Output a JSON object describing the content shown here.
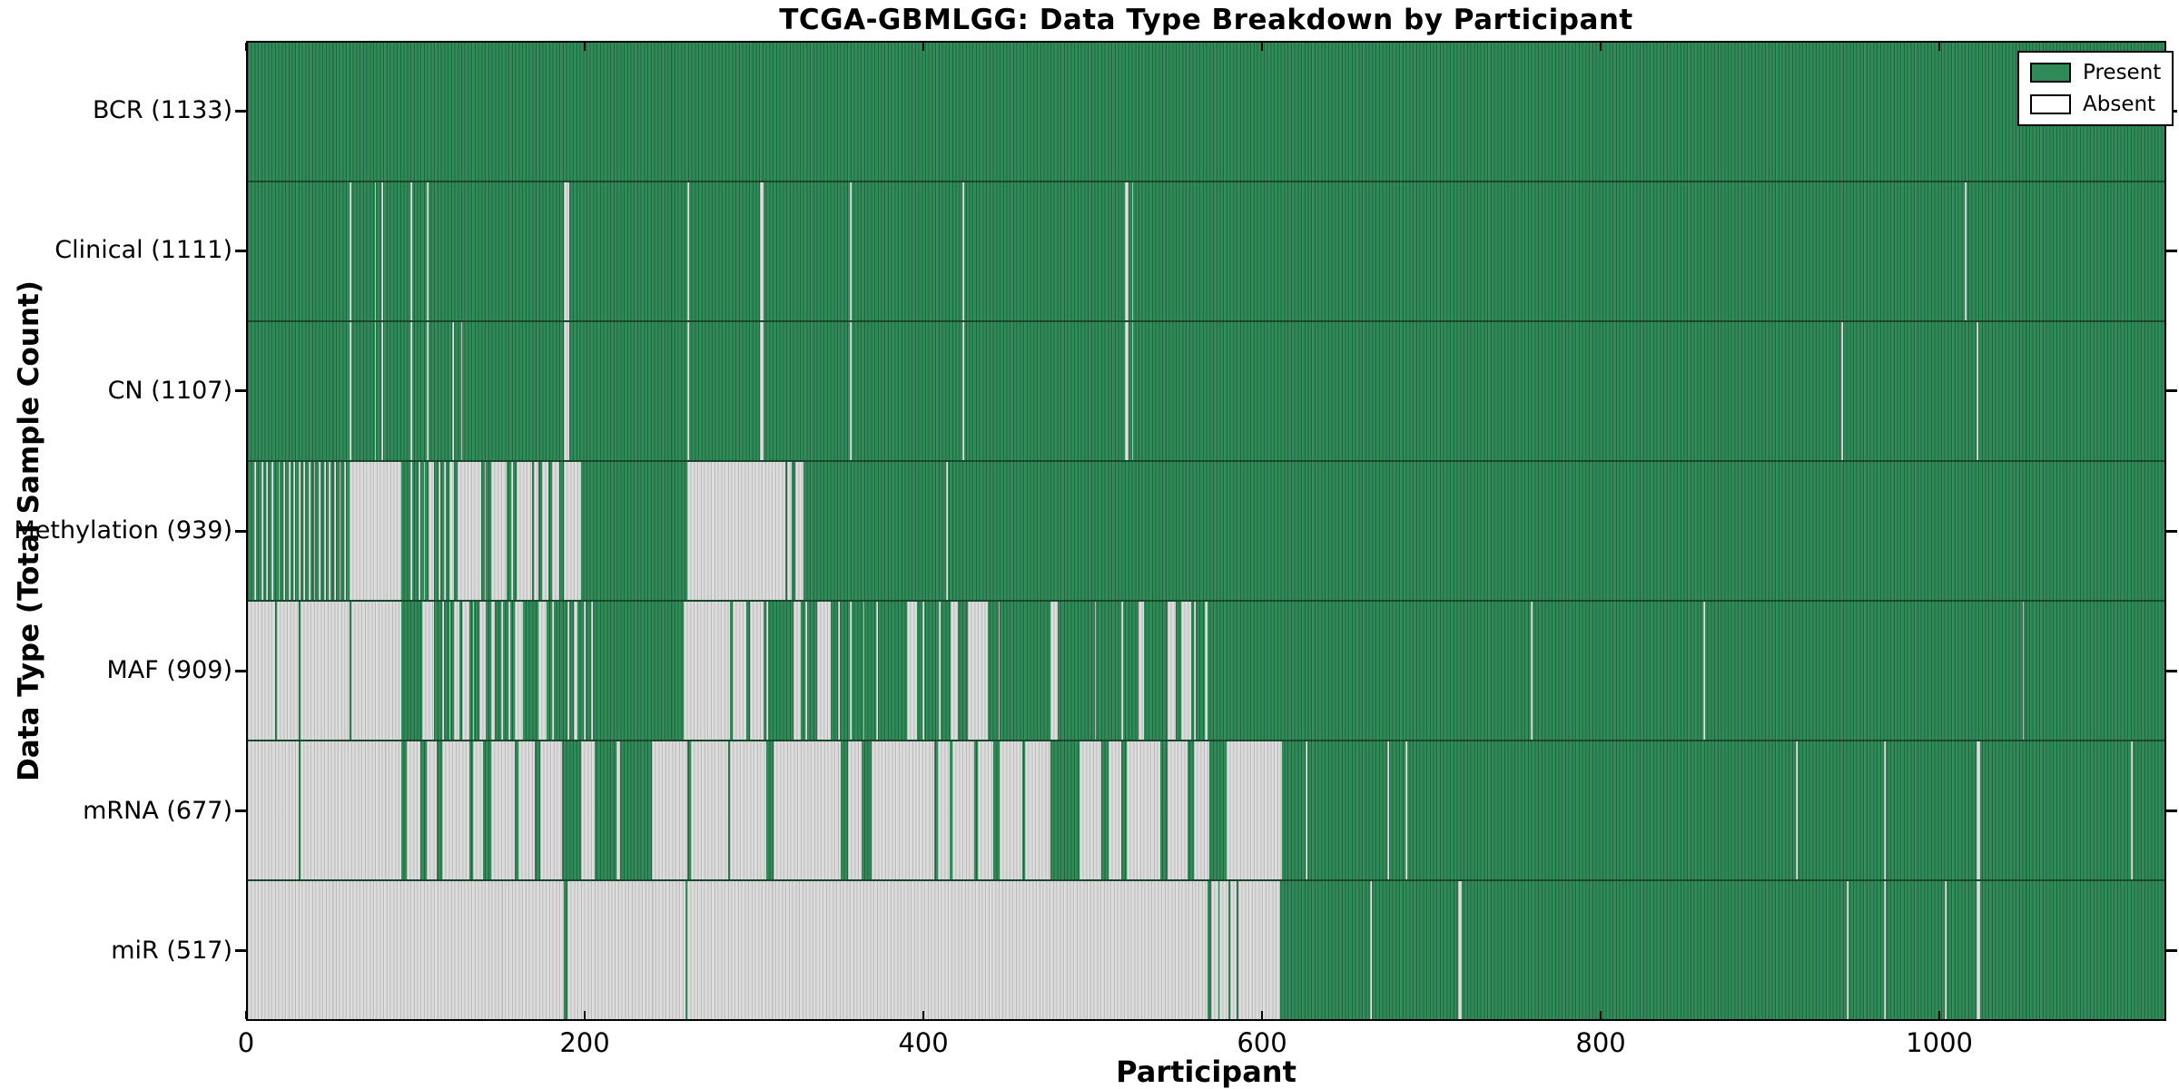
{
  "chart_data": {
    "type": "heatmap",
    "title": "TCGA-GBMLGG: Data Type Breakdown by Participant",
    "xlabel": "Participant",
    "ylabel": "Data Type (Total Sample Count)",
    "xlim": [
      0,
      1134
    ],
    "x_ticks": [
      0,
      200,
      400,
      600,
      800,
      1000
    ],
    "grid": false,
    "legend": {
      "position": "upper-right",
      "entries": [
        {
          "label": "Present",
          "color": "#2E8B57"
        },
        {
          "label": "Absent",
          "color": "#FFFFFF"
        }
      ]
    },
    "colors": {
      "present": "#2E8B57",
      "absent_cell": "#D9D9D9",
      "row_separator": "#1A2B20",
      "spine": "#000000"
    },
    "n_participants": 1133,
    "rows": [
      {
        "data_type": "BCR",
        "label": "BCR (1133)",
        "present_count": 1133,
        "absent_segments": []
      },
      {
        "data_type": "Clinical",
        "label": "Clinical (1111)",
        "present_count": 1111,
        "absent_segments": [
          [
            60,
            61
          ],
          [
            75,
            76
          ],
          [
            79,
            80
          ],
          [
            96,
            97
          ],
          [
            106,
            107
          ],
          [
            187,
            190
          ],
          [
            260,
            261
          ],
          [
            303,
            305
          ],
          [
            356,
            357
          ],
          [
            423,
            424
          ],
          [
            519,
            521
          ],
          [
            523,
            524
          ],
          [
            1016,
            1017
          ]
        ]
      },
      {
        "data_type": "CN",
        "label": "CN (1107)",
        "present_count": 1107,
        "absent_segments": [
          [
            60,
            61
          ],
          [
            75,
            76
          ],
          [
            79,
            80
          ],
          [
            96,
            97
          ],
          [
            106,
            107
          ],
          [
            121,
            122
          ],
          [
            126,
            127
          ],
          [
            187,
            190
          ],
          [
            260,
            261
          ],
          [
            303,
            305
          ],
          [
            356,
            357
          ],
          [
            423,
            424
          ],
          [
            519,
            521
          ],
          [
            523,
            524
          ],
          [
            943,
            944
          ],
          [
            1023,
            1024
          ]
        ]
      },
      {
        "data_type": "Methylation",
        "label": "Methylation (939)",
        "present_count": 939,
        "absent_segments": [
          [
            4,
            5
          ],
          [
            8,
            9
          ],
          [
            11,
            12
          ],
          [
            14,
            15
          ],
          [
            18,
            19
          ],
          [
            21,
            22
          ],
          [
            24,
            25
          ],
          [
            27,
            28
          ],
          [
            30,
            31
          ],
          [
            33,
            34
          ],
          [
            36,
            37
          ],
          [
            39,
            40
          ],
          [
            42,
            43
          ],
          [
            45,
            46
          ],
          [
            48,
            49
          ],
          [
            51,
            52
          ],
          [
            54,
            55
          ],
          [
            57,
            58
          ],
          [
            60,
            91
          ],
          [
            96,
            97
          ],
          [
            101,
            102
          ],
          [
            104,
            105
          ],
          [
            107,
            110
          ],
          [
            113,
            114
          ],
          [
            116,
            117
          ],
          [
            119,
            122
          ],
          [
            124,
            138
          ],
          [
            140,
            141
          ],
          [
            144,
            153
          ],
          [
            156,
            157
          ],
          [
            159,
            168
          ],
          [
            169,
            172
          ],
          [
            174,
            178
          ],
          [
            180,
            184
          ],
          [
            187,
            197
          ],
          [
            260,
            318
          ],
          [
            319,
            322
          ],
          [
            324,
            329
          ],
          [
            413,
            414
          ]
        ]
      },
      {
        "data_type": "MAF",
        "label": "MAF (909)",
        "present_count": 909,
        "absent_segments": [
          [
            0,
            16
          ],
          [
            17,
            30
          ],
          [
            31,
            60
          ],
          [
            61,
            91
          ],
          [
            103,
            110
          ],
          [
            115,
            116
          ],
          [
            119,
            120
          ],
          [
            122,
            125
          ],
          [
            127,
            131
          ],
          [
            133,
            134
          ],
          [
            137,
            141
          ],
          [
            144,
            146
          ],
          [
            150,
            151
          ],
          [
            154,
            155
          ],
          [
            158,
            163
          ],
          [
            172,
            177
          ],
          [
            180,
            181
          ],
          [
            189,
            190
          ],
          [
            193,
            195
          ],
          [
            199,
            200
          ],
          [
            203,
            204
          ],
          [
            258,
            285
          ],
          [
            287,
            295
          ],
          [
            297,
            305
          ],
          [
            307,
            308
          ],
          [
            323,
            327
          ],
          [
            330,
            331
          ],
          [
            337,
            345
          ],
          [
            349,
            350
          ],
          [
            356,
            357
          ],
          [
            364,
            365
          ],
          [
            372,
            373
          ],
          [
            390,
            396
          ],
          [
            399,
            400
          ],
          [
            409,
            410
          ],
          [
            416,
            420
          ],
          [
            426,
            438
          ],
          [
            444,
            445
          ],
          [
            475,
            479
          ],
          [
            501,
            502
          ],
          [
            517,
            518
          ],
          [
            527,
            530
          ],
          [
            544,
            549
          ],
          [
            552,
            558
          ],
          [
            560,
            561
          ],
          [
            566,
            568
          ],
          [
            759,
            760
          ],
          [
            861,
            862
          ],
          [
            1050,
            1051
          ]
        ]
      },
      {
        "data_type": "mRNA",
        "label": "mRNA (677)",
        "present_count": 677,
        "absent_segments": [
          [
            0,
            30
          ],
          [
            31,
            91
          ],
          [
            94,
            102
          ],
          [
            106,
            112
          ],
          [
            115,
            131
          ],
          [
            133,
            139
          ],
          [
            144,
            158
          ],
          [
            160,
            170
          ],
          [
            173,
            186
          ],
          [
            197,
            205
          ],
          [
            218,
            220
          ],
          [
            239,
            260
          ],
          [
            262,
            284
          ],
          [
            285,
            307
          ],
          [
            311,
            351
          ],
          [
            355,
            363
          ],
          [
            369,
            406
          ],
          [
            408,
            415
          ],
          [
            417,
            430
          ],
          [
            432,
            441
          ],
          [
            445,
            458
          ],
          [
            460,
            475
          ],
          [
            492,
            505
          ],
          [
            509,
            517
          ],
          [
            520,
            540
          ],
          [
            544,
            556
          ],
          [
            560,
            569
          ],
          [
            579,
            612
          ],
          [
            626,
            627
          ],
          [
            674,
            675
          ],
          [
            685,
            686
          ],
          [
            916,
            917
          ],
          [
            968,
            969
          ],
          [
            1023,
            1025
          ],
          [
            1114,
            1115
          ]
        ]
      },
      {
        "data_type": "miR",
        "label": "miR (517)",
        "present_count": 517,
        "absent_segments": [
          [
            0,
            187
          ],
          [
            189,
            259
          ],
          [
            260,
            568
          ],
          [
            570,
            574
          ],
          [
            575,
            580
          ],
          [
            581,
            585
          ],
          [
            586,
            611
          ],
          [
            664,
            665
          ],
          [
            716,
            718
          ],
          [
            946,
            947
          ],
          [
            968,
            969
          ],
          [
            1004,
            1005
          ],
          [
            1023,
            1025
          ]
        ]
      }
    ]
  }
}
